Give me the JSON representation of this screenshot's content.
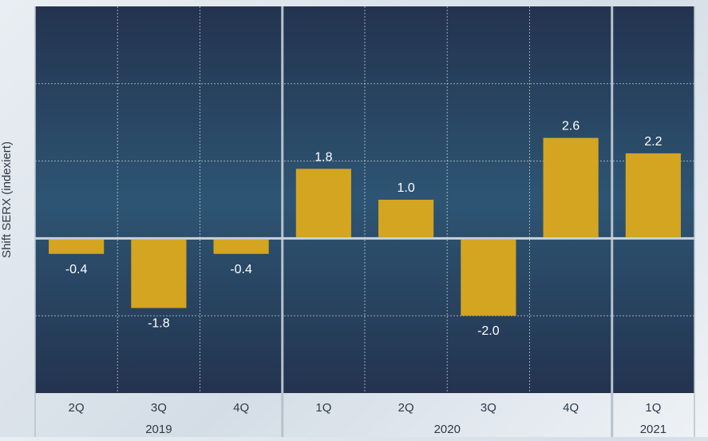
{
  "chart_data": {
    "type": "bar",
    "ylabel": "Shift SERX (indexiert)",
    "categories": [
      "2Q",
      "3Q",
      "4Q",
      "1Q",
      "2Q",
      "3Q",
      "4Q",
      "1Q"
    ],
    "years": [
      {
        "label": "2019",
        "count": 3
      },
      {
        "label": "2020",
        "count": 4
      },
      {
        "label": "2021",
        "count": 1
      }
    ],
    "series": [
      {
        "values": [
          -0.4,
          -1.8,
          -0.4,
          1.8,
          1.0,
          -2.0,
          2.6,
          2.2
        ]
      }
    ],
    "value_labels": [
      "-0.4",
      "-1.8",
      "-0.4",
      "1.8",
      "1.0",
      "-2.0",
      "2.6",
      "2.2"
    ],
    "ylim": [
      -4,
      6
    ],
    "grid": true,
    "bar_color": "#d4a520",
    "plot_bg_top": "#23334f",
    "plot_bg_mid": "#2d5573",
    "label_color": "#ffffff",
    "axis_text_color": "#2f3a47"
  }
}
